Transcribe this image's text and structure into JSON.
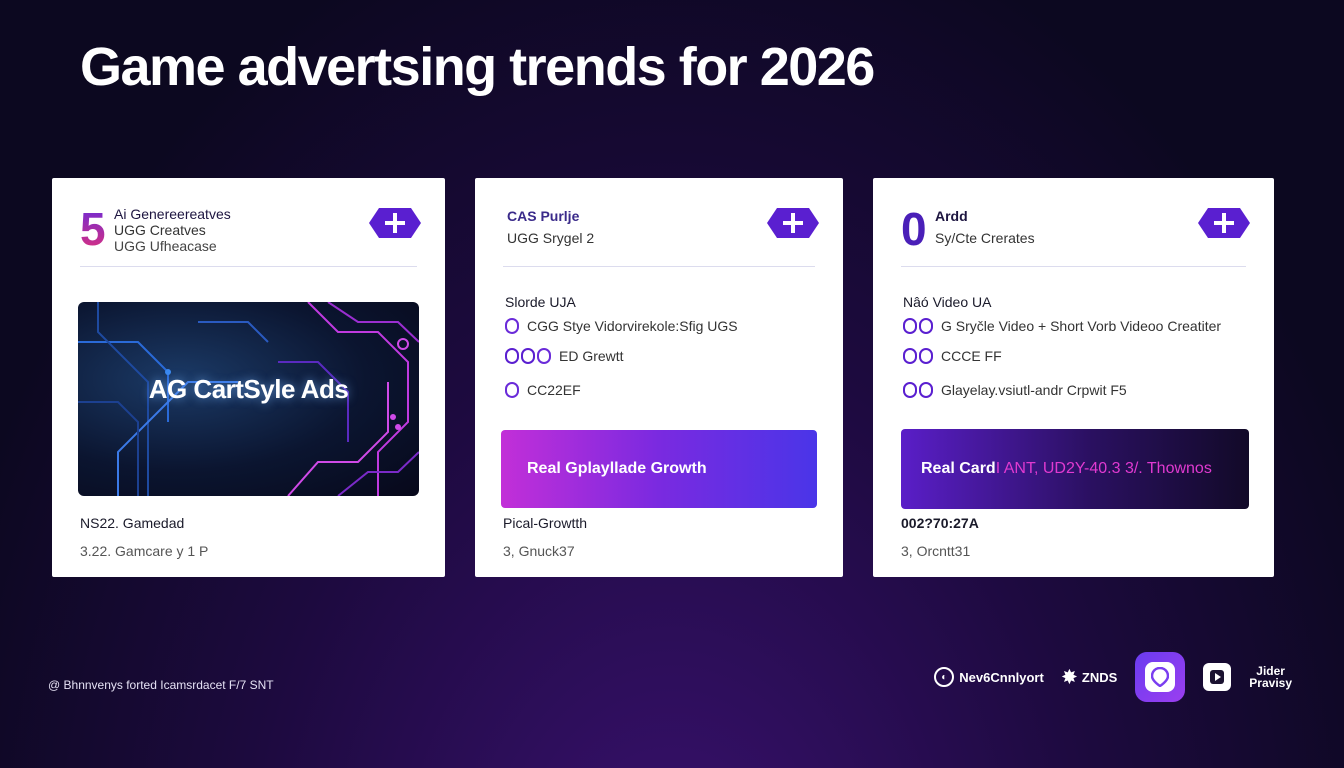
{
  "page": {
    "title": "Game advertsing trends for 2026"
  },
  "colors": {
    "accent_purple": "#6a2bd9",
    "accent_pink": "#e0307a",
    "background": "#120a2a"
  },
  "cards": [
    {
      "big_number": "5",
      "head_line1": "Ai Genereereatves",
      "head_line2": "UGG Creatves",
      "head_line3": "UGG Ufheacase",
      "add_icon": "plus-icon",
      "hero_text": "AG CartSyle Ads",
      "foot_line1": "NS22. Gamedad",
      "foot_line2": "3.22. Gamcare y 1 P"
    },
    {
      "head_line1": "CAS Purlje",
      "head_line2": "UGG Srygel 2",
      "add_icon": "plus-icon",
      "sub_heading": "Slorde UJA",
      "features": [
        "CGG Styе Vidorvirekole:Sfig UGS",
        "ED Grewtt",
        "CC22EF"
      ],
      "banner": "Real Gplayllade Growth",
      "foot_line1": "Pical-Growtth",
      "foot_line2": "3, Gnuck37"
    },
    {
      "big_number": "0",
      "head_line1": "Ardd",
      "head_line2": "Sy/Cte Crerates",
      "add_icon": "plus-icon",
      "sub_heading": "Nâó Video UA",
      "features": [
        "G Sryčle Video + Short Vorb Videoo Creatiter",
        "CCCE FF",
        "Glayelay.vsiutl-andr Crpwit F5"
      ],
      "banner_main": "Real Card",
      "banner_accent": "I ANT, UD2Y-40.3 3/. Thownos",
      "foot_line1": "002?70:27A",
      "foot_line2": "3, Orcntt31"
    }
  ],
  "footer": {
    "note": "@ Bhnnvenys forted Icamsrdacet F/7 SNT",
    "logos": {
      "logo1": "Nev6Cnnlyort",
      "logo2": "ZNDS",
      "logo5_line1": "Jider",
      "logo5_line2": "Pravisy"
    }
  }
}
